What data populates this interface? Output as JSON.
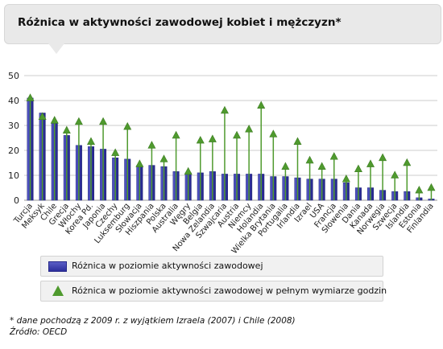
{
  "title": "Różnica w aktywności zawodowej kobiet i mężczyzn*",
  "legend": {
    "bar_label": "Różnica w poziomie aktywności zawodowej",
    "marker_label": "Różnica w poziomie aktywności zawodowej w pełnym wymiarze godzin"
  },
  "footnote": "* dane pochodzą z 2009 r. z wyjątkiem Izraela (2007) i Chile (2008)",
  "source": "Źródło: OECD",
  "colors": {
    "bar": "#3436a8",
    "marker": "#4f9a2e",
    "grid": "#cccccc"
  },
  "chart_data": {
    "type": "bar",
    "ylim": [
      0,
      50
    ],
    "yticks": [
      0,
      10,
      20,
      30,
      40,
      50
    ],
    "grid": true,
    "categories": [
      "Turcja",
      "Meksyk",
      "Chile",
      "Grecja",
      "Włochy",
      "Korea Pd.",
      "Japonia",
      "Czechy",
      "Luksemburg",
      "Słowacja",
      "Hiszpania",
      "Polska",
      "Australia",
      "Węgry",
      "Belgia",
      "Nowa Zelandia",
      "Szwajcaria",
      "Austria",
      "Niemcy",
      "Holandia",
      "Wielka Brytania",
      "Portugalia",
      "Irlandia",
      "Izrael",
      "USA",
      "Francja",
      "Słowenia",
      "Dania",
      "Kanada",
      "Norwegia",
      "Szwecja",
      "Islandia",
      "Estonia",
      "Finlandia"
    ],
    "series": [
      {
        "name": "Różnica w poziomie aktywności zawodowej",
        "type": "bar",
        "values": [
          41,
          35,
          31,
          26,
          22,
          21.5,
          20.5,
          17,
          16.5,
          14,
          14,
          13.5,
          11.5,
          11,
          11,
          11.5,
          10.5,
          10.5,
          10.5,
          10.5,
          9.5,
          9.5,
          9,
          8.5,
          8.5,
          8.5,
          7,
          5,
          5,
          4,
          3.5,
          3.5,
          1,
          0.5
        ]
      },
      {
        "name": "Różnica w poziomie aktywności zawodowej w pełnym wymiarze godzin",
        "type": "marker",
        "values": [
          41,
          33.5,
          32,
          28,
          31.5,
          23.5,
          31.5,
          19,
          29.5,
          14.5,
          22,
          16.5,
          26,
          11.5,
          24,
          24.5,
          36,
          26,
          28.5,
          38,
          26.5,
          13.5,
          23.5,
          16,
          13.5,
          17.5,
          8.5,
          12.5,
          14.5,
          17,
          10,
          15,
          4,
          5
        ]
      }
    ]
  }
}
